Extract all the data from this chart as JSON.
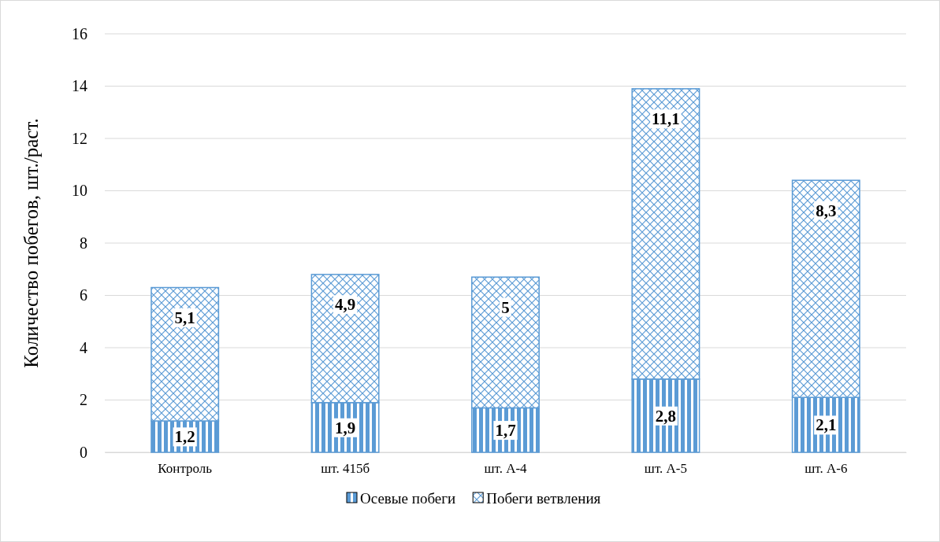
{
  "chart_data": {
    "type": "bar",
    "stacked": true,
    "ylabel": "Количество побегов, шт./раст.",
    "categories": [
      "Контроль",
      "шт. 415б",
      "шт. А-4",
      "шт. А-5",
      "шт. А-6"
    ],
    "series": [
      {
        "name": "Осевые побеги",
        "color": "#5b9bd5",
        "values": [
          1.2,
          1.9,
          1.7,
          2.8,
          2.1
        ],
        "value_labels": [
          "1,2",
          "1,9",
          "1,7",
          "2,8",
          "2,1"
        ]
      },
      {
        "name": "Побеги ветвления",
        "color": "#5b9bd5",
        "values": [
          5.1,
          4.9,
          5,
          11.1,
          8.3
        ],
        "value_labels": [
          "5,1",
          "4,9",
          "5",
          "11,1",
          "8,3"
        ]
      }
    ],
    "ylim": [
      0,
      16
    ],
    "yticks": [
      0,
      2,
      4,
      6,
      8,
      10,
      12,
      14,
      16
    ],
    "grid": "y",
    "legend": "bottom"
  }
}
